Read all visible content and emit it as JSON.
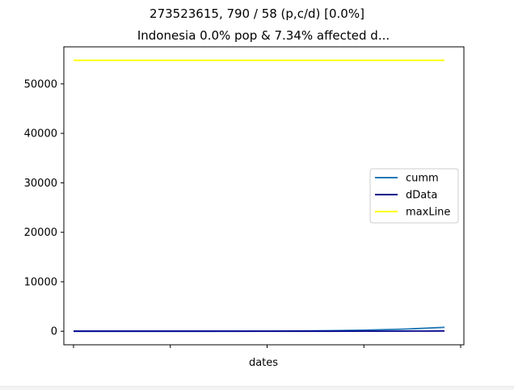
{
  "chart_data": {
    "type": "line",
    "suptitle": "273523615, 790 / 58 (p,c/d) [0.0%]",
    "title": "Indonesia 0.0% pop & 7.34% affected d...",
    "xlabel": "dates",
    "ylabel": "",
    "x_tick_labels": [
      "",
      "",
      "",
      "",
      ""
    ],
    "y_ticks": [
      0,
      10000,
      20000,
      30000,
      40000,
      50000
    ],
    "y_tick_labels": [
      "0",
      "10000",
      "20000",
      "30000",
      "40000",
      "50000"
    ],
    "ylim": [
      -2737,
      57489
    ],
    "xlim": [
      -3,
      121
    ],
    "grid": false,
    "legend_position": "center-right",
    "series": [
      {
        "name": "cumm",
        "color": "#1f77b4",
        "x": [
          0,
          20,
          40,
          60,
          70,
          80,
          90,
          100,
          105,
          110,
          115
        ],
        "y": [
          2,
          2,
          6,
          20,
          60,
          120,
          220,
          380,
          500,
          640,
          790
        ]
      },
      {
        "name": "dData",
        "color": "#00008b",
        "x": [
          0,
          20,
          40,
          60,
          70,
          80,
          90,
          100,
          105,
          110,
          115
        ],
        "y": [
          0,
          0,
          1,
          3,
          6,
          10,
          16,
          24,
          30,
          42,
          58
        ]
      },
      {
        "name": "maxLine",
        "color": "#ffff00",
        "x": [
          0,
          115
        ],
        "y": [
          54760,
          54760
        ]
      }
    ]
  }
}
